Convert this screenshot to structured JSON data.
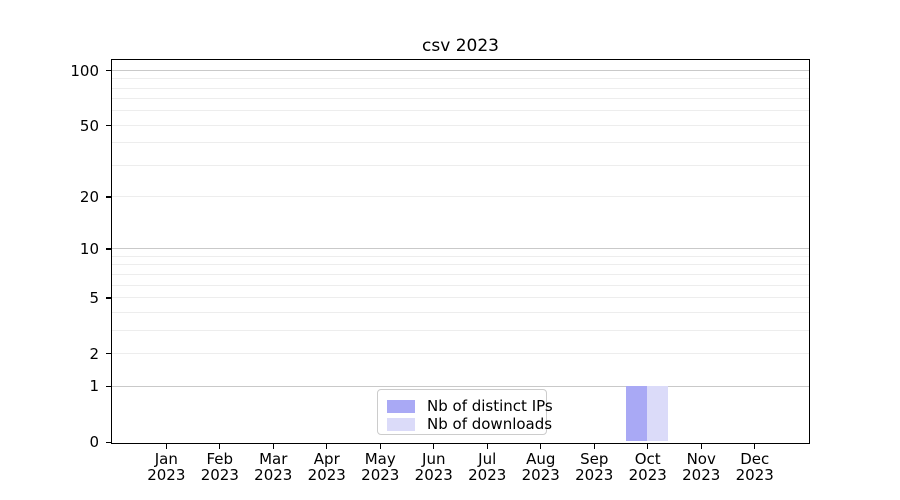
{
  "title": "csv 2023",
  "chart_data": {
    "type": "bar",
    "title": "csv 2023",
    "categories": [
      {
        "month": "Jan",
        "year": "2023"
      },
      {
        "month": "Feb",
        "year": "2023"
      },
      {
        "month": "Mar",
        "year": "2023"
      },
      {
        "month": "Apr",
        "year": "2023"
      },
      {
        "month": "May",
        "year": "2023"
      },
      {
        "month": "Jun",
        "year": "2023"
      },
      {
        "month": "Jul",
        "year": "2023"
      },
      {
        "month": "Aug",
        "year": "2023"
      },
      {
        "month": "Sep",
        "year": "2023"
      },
      {
        "month": "Oct",
        "year": "2023"
      },
      {
        "month": "Nov",
        "year": "2023"
      },
      {
        "month": "Dec",
        "year": "2023"
      }
    ],
    "series": [
      {
        "name": "Nb of distinct IPs",
        "color": "#a9a9f5",
        "values": [
          0,
          0,
          0,
          0,
          0,
          0,
          0,
          0,
          0,
          1,
          0,
          0
        ]
      },
      {
        "name": "Nb of downloads",
        "color": "#dbdbf9",
        "values": [
          0,
          0,
          0,
          0,
          0,
          0,
          0,
          0,
          0,
          1,
          0,
          0
        ]
      }
    ],
    "xlabel": "",
    "ylabel": "",
    "yscale": "log1p",
    "ylim": [
      0,
      113
    ],
    "yticks": [
      0,
      1,
      2,
      5,
      10,
      20,
      50,
      100
    ],
    "gridlines": {
      "orientation": "horizontal",
      "major": [
        1,
        10,
        100
      ],
      "minor": [
        2,
        3,
        4,
        5,
        6,
        7,
        8,
        9,
        20,
        30,
        40,
        50,
        60,
        70,
        80,
        90
      ],
      "major_color": "#c9c9c9",
      "minor_color": "#ededed"
    },
    "legend": {
      "position": "lower center",
      "items": [
        "Nb of distinct IPs",
        "Nb of downloads"
      ]
    },
    "bar_group_width_fraction": 0.8,
    "frame_color": "#000000",
    "background_color": "#ffffff"
  }
}
